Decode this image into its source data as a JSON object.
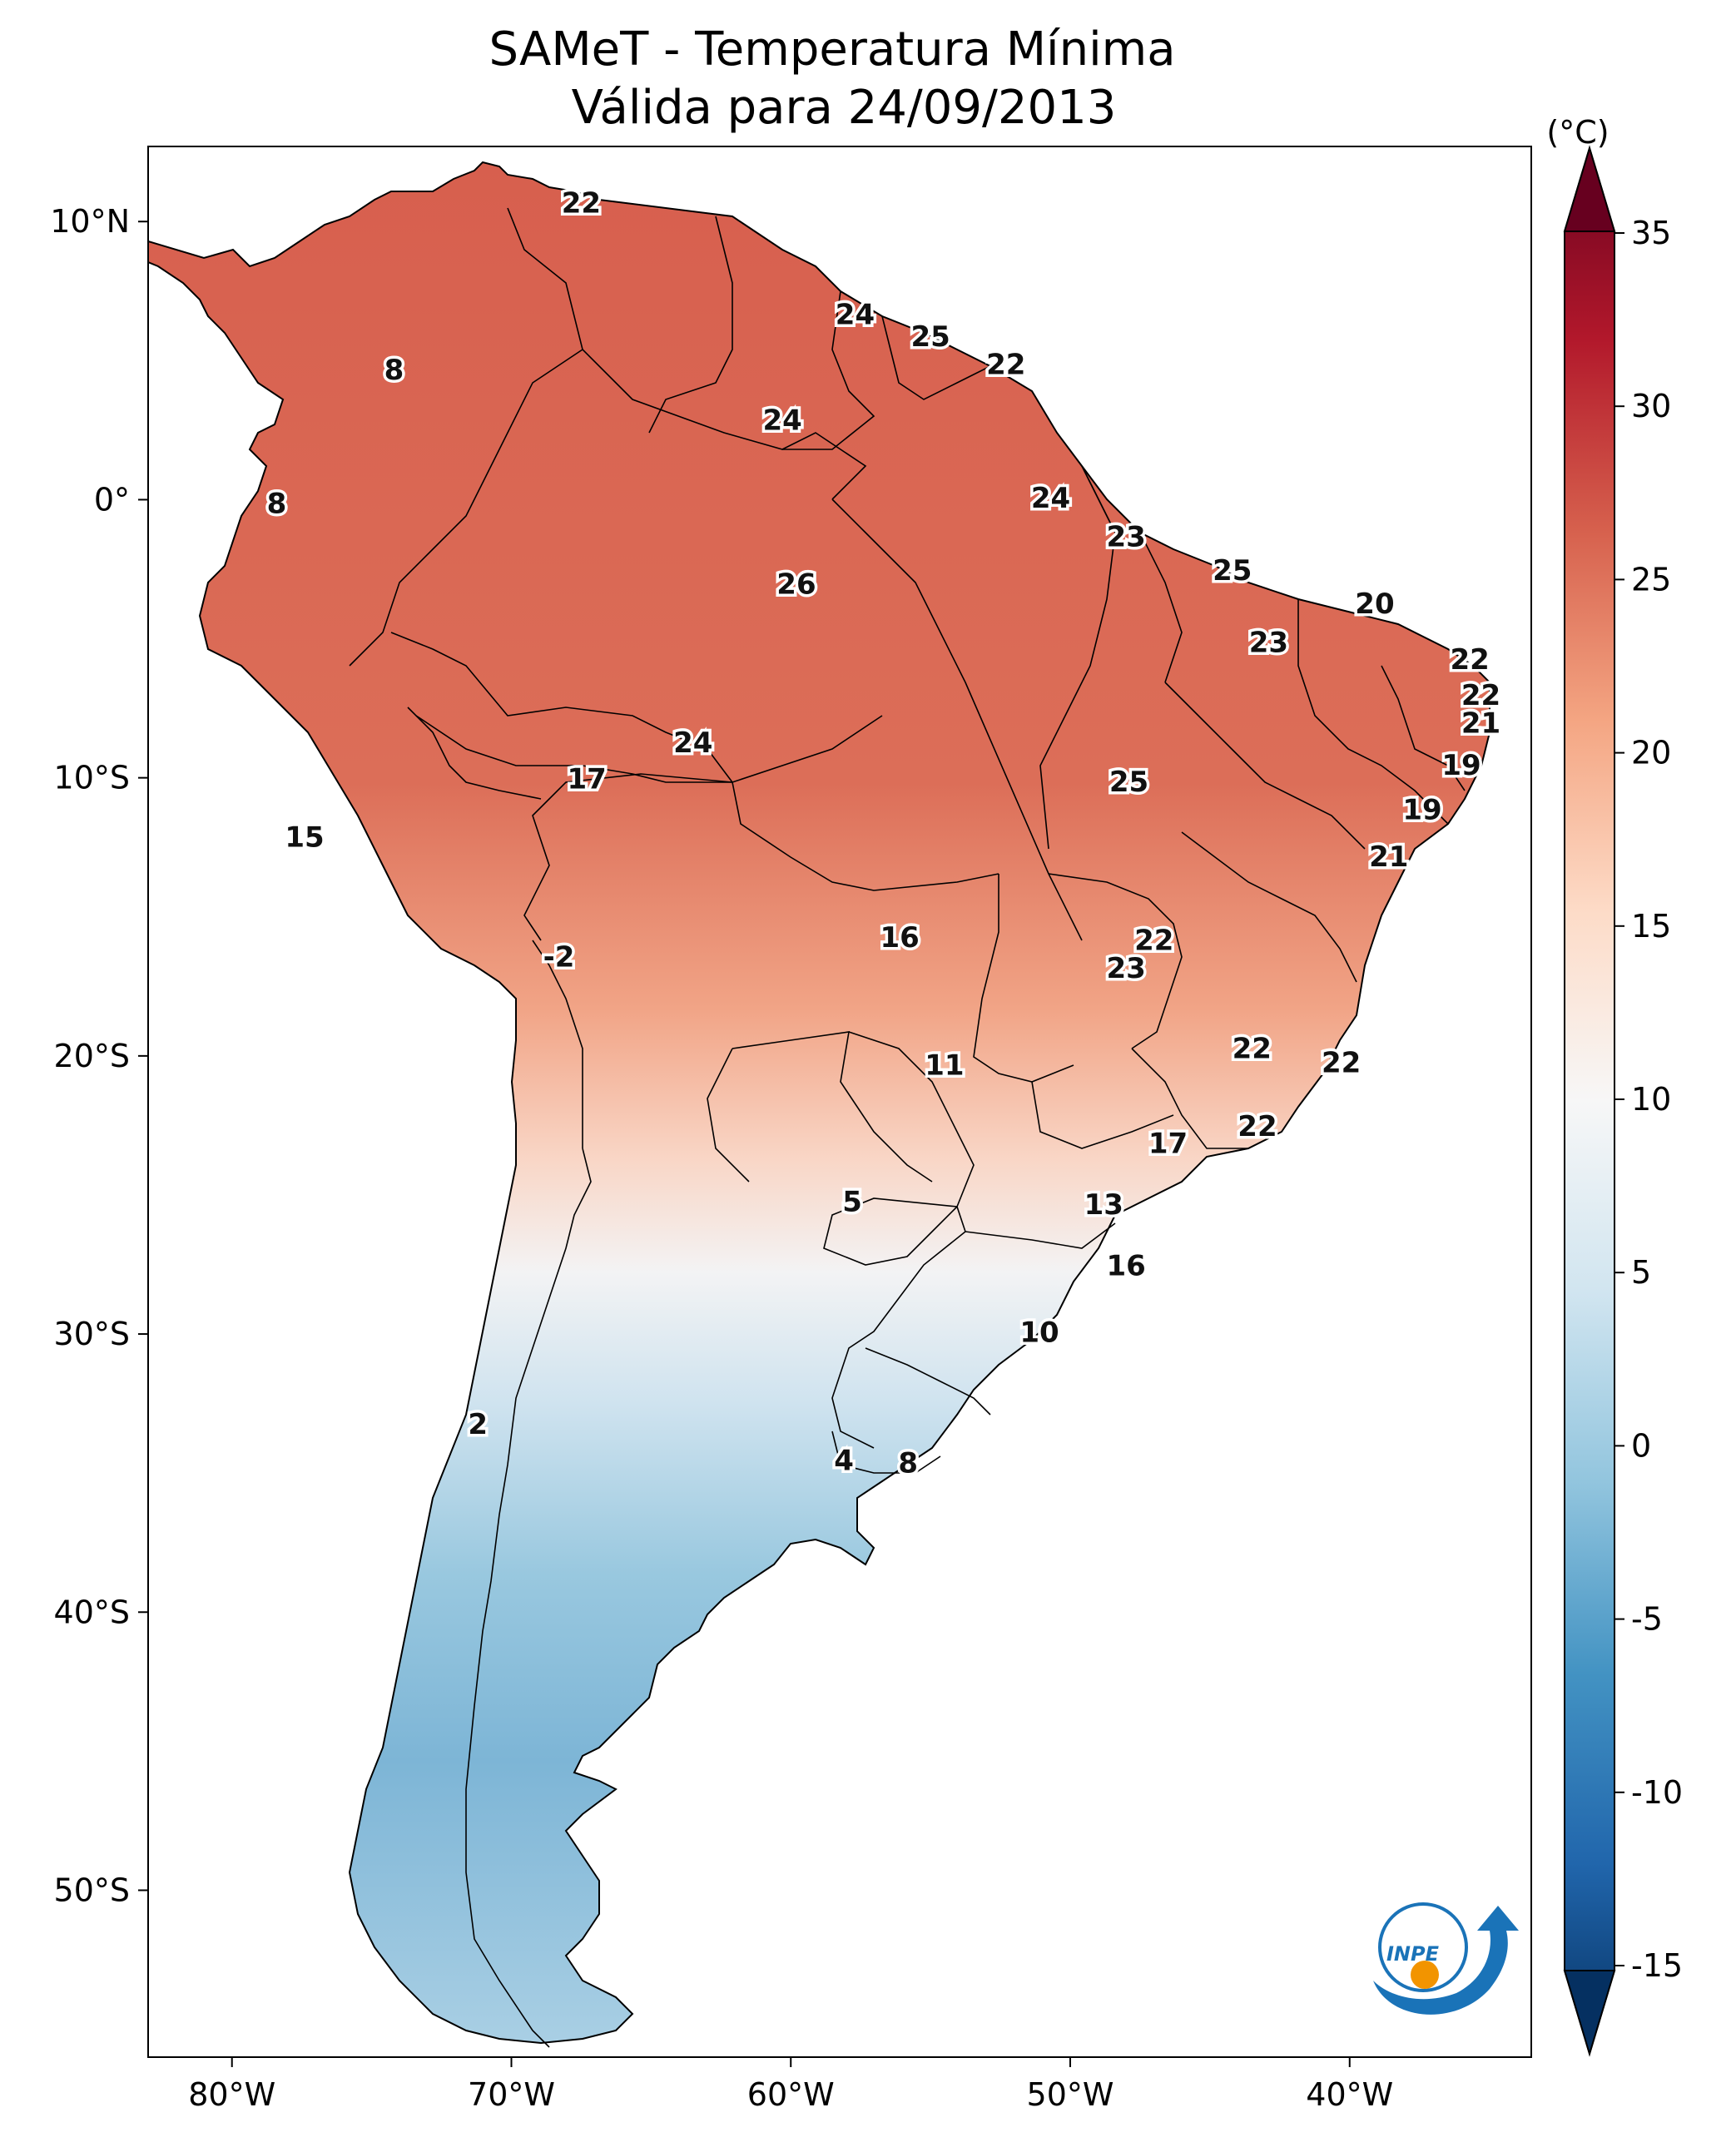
{
  "title": {
    "line1": "SAMeT - Temperatura Mínima",
    "line2": "Válida para 24/09/2013"
  },
  "axes": {
    "lon_ticks": [
      {
        "value": -80,
        "label": "80°W"
      },
      {
        "value": -70,
        "label": "70°W"
      },
      {
        "value": -60,
        "label": "60°W"
      },
      {
        "value": -50,
        "label": "50°W"
      },
      {
        "value": -40,
        "label": "40°W"
      }
    ],
    "lat_ticks": [
      {
        "value": 10,
        "label": "10°N"
      },
      {
        "value": 0,
        "label": "0°"
      },
      {
        "value": -10,
        "label": "10°S"
      },
      {
        "value": -20,
        "label": "20°S"
      },
      {
        "value": -30,
        "label": "30°S"
      },
      {
        "value": -40,
        "label": "40°S"
      },
      {
        "value": -50,
        "label": "50°S"
      }
    ],
    "lon_range": [
      -83,
      -33.5
    ],
    "lat_range": [
      -56,
      12.7
    ]
  },
  "colorbar": {
    "unit": "(°C)",
    "range": [
      -15,
      35
    ],
    "ticks": [
      "35",
      "30",
      "25",
      "20",
      "15",
      "10",
      "5",
      "0",
      "-5",
      "-10",
      "-15"
    ],
    "colors": [
      "#67001f",
      "#b2182b",
      "#d6604d",
      "#f4a582",
      "#fddbc7",
      "#f7f7f7",
      "#d1e5f0",
      "#92c5de",
      "#4393c3",
      "#2166ac",
      "#053061"
    ]
  },
  "logo": {
    "name": "inpe-logo",
    "text": "INPE"
  },
  "labels": [
    {
      "lon": -67.5,
      "lat": 10.6,
      "t": "22"
    },
    {
      "lon": -57.7,
      "lat": 6.6,
      "t": "24"
    },
    {
      "lon": -55.0,
      "lat": 5.8,
      "t": "25"
    },
    {
      "lon": -52.3,
      "lat": 4.8,
      "t": "22"
    },
    {
      "lon": -74.2,
      "lat": 4.6,
      "t": "8"
    },
    {
      "lon": -60.3,
      "lat": 2.8,
      "t": "24"
    },
    {
      "lon": -78.4,
      "lat": -0.2,
      "t": "8"
    },
    {
      "lon": -50.7,
      "lat": 0.0,
      "t": "24"
    },
    {
      "lon": -48.0,
      "lat": -1.4,
      "t": "23"
    },
    {
      "lon": -59.8,
      "lat": -3.1,
      "t": "26"
    },
    {
      "lon": -44.2,
      "lat": -2.6,
      "t": "25"
    },
    {
      "lon": -39.1,
      "lat": -3.8,
      "t": "20"
    },
    {
      "lon": -42.9,
      "lat": -5.2,
      "t": "23"
    },
    {
      "lon": -35.7,
      "lat": -5.8,
      "t": "22"
    },
    {
      "lon": -35.3,
      "lat": -7.1,
      "t": "22"
    },
    {
      "lon": -35.3,
      "lat": -8.1,
      "t": "21"
    },
    {
      "lon": -63.5,
      "lat": -8.8,
      "t": "24"
    },
    {
      "lon": -36.0,
      "lat": -9.6,
      "t": "19"
    },
    {
      "lon": -67.3,
      "lat": -10.1,
      "t": "17"
    },
    {
      "lon": -47.9,
      "lat": -10.2,
      "t": "25"
    },
    {
      "lon": -37.4,
      "lat": -11.2,
      "t": "19"
    },
    {
      "lon": -77.4,
      "lat": -12.2,
      "t": "15"
    },
    {
      "lon": -38.6,
      "lat": -12.9,
      "t": "21"
    },
    {
      "lon": -56.1,
      "lat": -15.8,
      "t": "16"
    },
    {
      "lon": -47.0,
      "lat": -15.9,
      "t": "22"
    },
    {
      "lon": -48.0,
      "lat": -16.9,
      "t": "23"
    },
    {
      "lon": -68.3,
      "lat": -16.5,
      "t": "-2"
    },
    {
      "lon": -54.5,
      "lat": -20.4,
      "t": "11"
    },
    {
      "lon": -43.5,
      "lat": -19.8,
      "t": "22"
    },
    {
      "lon": -40.3,
      "lat": -20.3,
      "t": "22"
    },
    {
      "lon": -43.3,
      "lat": -22.6,
      "t": "22"
    },
    {
      "lon": -46.5,
      "lat": -23.2,
      "t": "17"
    },
    {
      "lon": -57.8,
      "lat": -25.3,
      "t": "5"
    },
    {
      "lon": -48.8,
      "lat": -25.4,
      "t": "13"
    },
    {
      "lon": -48.0,
      "lat": -27.6,
      "t": "16"
    },
    {
      "lon": -51.1,
      "lat": -30.0,
      "t": "10"
    },
    {
      "lon": -71.2,
      "lat": -33.3,
      "t": "2"
    },
    {
      "lon": -58.1,
      "lat": -34.6,
      "t": "4"
    },
    {
      "lon": -55.8,
      "lat": -34.7,
      "t": "8"
    }
  ]
}
